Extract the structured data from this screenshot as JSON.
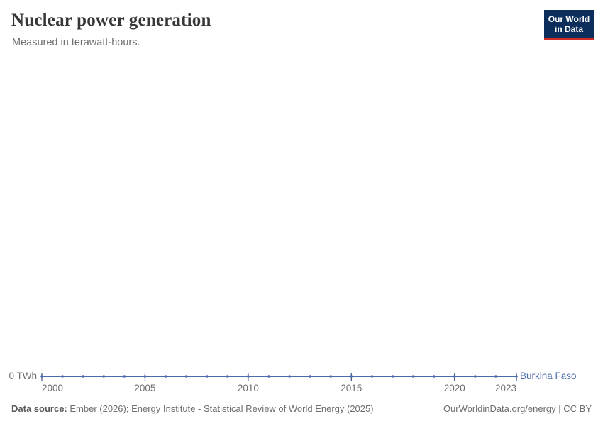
{
  "header": {
    "title": "Nuclear power generation",
    "subtitle": "Measured in terawatt-hours.",
    "logo": {
      "line1": "Our World",
      "line2": "in Data"
    }
  },
  "chart_data": {
    "type": "line",
    "title": "Nuclear power generation",
    "subtitle": "Measured in terawatt-hours.",
    "x": [
      2000,
      2001,
      2002,
      2003,
      2004,
      2005,
      2006,
      2007,
      2008,
      2009,
      2010,
      2011,
      2012,
      2013,
      2014,
      2015,
      2016,
      2017,
      2018,
      2019,
      2020,
      2021,
      2022,
      2023
    ],
    "series": [
      {
        "name": "Burkina Faso",
        "color": "#4b6bac",
        "values": [
          0,
          0,
          0,
          0,
          0,
          0,
          0,
          0,
          0,
          0,
          0,
          0,
          0,
          0,
          0,
          0,
          0,
          0,
          0,
          0,
          0,
          0,
          0,
          0
        ]
      }
    ],
    "x_ticks": [
      2000,
      2005,
      2010,
      2015,
      2020,
      2023
    ],
    "y_ticks": [
      {
        "value": 0,
        "label": "0 TWh"
      }
    ],
    "xlabel": "",
    "ylabel": "",
    "ylim": [
      0,
      0
    ],
    "grid": false,
    "legend_position": "end-of-line"
  },
  "footer": {
    "source_label": "Data source:",
    "source_text": " Ember (2026); Energy Institute - Statistical Review of World Energy (2025)",
    "link_text": "OurWorldinData.org/energy | CC BY"
  },
  "colors": {
    "line": "#4b6bac",
    "entity_label": "#4b6bac",
    "tick_mark": "#3a4e7d",
    "tick_label": "#6e6e6e",
    "logo_bg": "#0d2e5b",
    "logo_stripe": "#d22b27"
  }
}
